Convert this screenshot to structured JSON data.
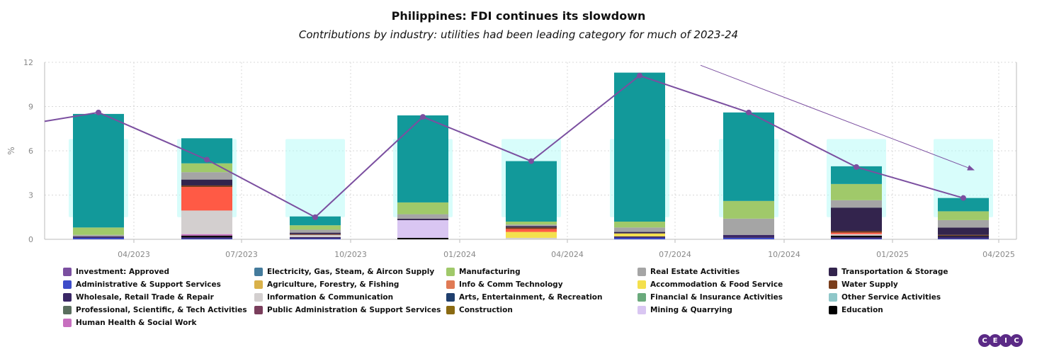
{
  "chart_data": {
    "type": "bar",
    "title": "Philippines: FDI continues its slowdown",
    "subtitle": "Contributions by industry: utilities had been leading category for much of 2023-24",
    "ylabel": "%",
    "ylim": [
      0,
      12
    ],
    "yticks": [
      "0",
      "3",
      "6",
      "9",
      "12"
    ],
    "xticks": [
      "04/2023",
      "07/2023",
      "10/2023",
      "01/2024",
      "04/2024",
      "07/2024",
      "10/2024",
      "01/2025",
      "04/2025"
    ],
    "grid": true,
    "stacked": true,
    "periods": [
      "Q1 2023",
      "Q2 2023",
      "Q3 2023",
      "Q4 2023",
      "Q1 2024",
      "Q2 2024",
      "Q3 2024",
      "Q4 2024",
      "Q1 2025"
    ],
    "total_line": {
      "name": "Investment: Approved",
      "values": [
        8.6,
        5.4,
        1.5,
        8.3,
        5.3,
        11.1,
        8.6,
        4.9,
        2.8
      ],
      "start_value": 8.0
    },
    "trend_arrow": {
      "from_value": 11.8,
      "to_value": 4.7
    },
    "series": [
      {
        "name": "Administrative & Support Services",
        "color": "#3d4cc9",
        "values": [
          0.1,
          0.05,
          0.05,
          0,
          0,
          0.1,
          0.1,
          0.05,
          0.05
        ]
      },
      {
        "name": "Wholesale, Retail Trade & Repair",
        "color": "#3a2766",
        "values": [
          0.1,
          0.1,
          0.1,
          0,
          0,
          0.1,
          0.2,
          0.1,
          0.15
        ]
      },
      {
        "name": "Education",
        "color": "#000000",
        "values": [
          0,
          0.1,
          0,
          0.1,
          0,
          0,
          0,
          0.1,
          0.05
        ]
      },
      {
        "name": "Human Health & Social Work",
        "color": "#c76fbf",
        "values": [
          0,
          0.1,
          0,
          0,
          0,
          0,
          0,
          0,
          0
        ]
      },
      {
        "name": "Information & Communication",
        "color": "#d3cfcf",
        "values": [
          0,
          1.6,
          0.15,
          0,
          0.1,
          0,
          0,
          0.1,
          0
        ]
      },
      {
        "name": "Mining & Quarrying",
        "color": "#d9c6f2",
        "values": [
          0,
          0,
          0,
          1.2,
          0,
          0,
          0,
          0,
          0
        ]
      },
      {
        "name": "Accommodation & Food Service",
        "color": "#f4e04d",
        "values": [
          0,
          0,
          0,
          0,
          0.4,
          0.2,
          0,
          0,
          0
        ]
      },
      {
        "name": "Info & Comm Technology",
        "color": "#ff5a45",
        "values": [
          0,
          1.6,
          0,
          0,
          0.2,
          0,
          0,
          0.1,
          0
        ]
      },
      {
        "name": "Water Supply",
        "color": "#7a3e1c",
        "values": [
          0,
          0.1,
          0.05,
          0,
          0.1,
          0,
          0,
          0.1,
          0.05
        ]
      },
      {
        "name": "Transportation & Storage",
        "color": "#33244d",
        "values": [
          0,
          0.4,
          0.1,
          0.1,
          0.1,
          0.1,
          0,
          1.6,
          0.5
        ]
      },
      {
        "name": "Real Estate Activities",
        "color": "#a5a5a5",
        "values": [
          0.1,
          0.5,
          0.2,
          0.3,
          0.1,
          0.3,
          1.1,
          0.5,
          0.5
        ]
      },
      {
        "name": "Manufacturing",
        "color": "#a0c96a",
        "values": [
          0.5,
          0.6,
          0.3,
          0.8,
          0.2,
          0.4,
          1.2,
          1.1,
          0.6
        ]
      },
      {
        "name": "Electricity, Gas, Steam, & Aircon Supply",
        "color": "#12999a",
        "values": [
          7.7,
          1.7,
          0.6,
          5.9,
          4.1,
          10.1,
          6.0,
          1.2,
          0.9
        ]
      }
    ],
    "legend": [
      {
        "name": "Investment: Approved",
        "color": "#7b4fa0"
      },
      {
        "name": "Electricity, Gas, Steam, & Aircon Supply",
        "color": "#447b9c"
      },
      {
        "name": "Manufacturing",
        "color": "#a0c96a"
      },
      {
        "name": "Real Estate Activities",
        "color": "#a5a5a5"
      },
      {
        "name": "Transportation & Storage",
        "color": "#33244d"
      },
      {
        "name": "Administrative & Support Services",
        "color": "#3d4cc9"
      },
      {
        "name": "Agriculture, Forestry, & Fishing",
        "color": "#d9b14a"
      },
      {
        "name": "Info & Comm Technology",
        "color": "#e07a55"
      },
      {
        "name": "Accommodation & Food Service",
        "color": "#f4e04d"
      },
      {
        "name": "Water Supply",
        "color": "#7a3e1c"
      },
      {
        "name": "Wholesale, Retail Trade & Repair",
        "color": "#3a2766"
      },
      {
        "name": "Information & Communication",
        "color": "#d3cfcf"
      },
      {
        "name": "Arts, Entertainment, & Recreation",
        "color": "#1f3f6e"
      },
      {
        "name": "Financial & Insurance Activities",
        "color": "#6aaa7c"
      },
      {
        "name": "Other Service Activities",
        "color": "#8fc7c9"
      },
      {
        "name": "Professional, Scientific, & Tech Activities",
        "color": "#5a6e5e"
      },
      {
        "name": "Public Administration & Support Services",
        "color": "#7a3e5c"
      },
      {
        "name": "Construction",
        "color": "#8a6a12"
      },
      {
        "name": "Mining & Quarrying",
        "color": "#d9c6f2"
      },
      {
        "name": "Education",
        "color": "#000000"
      },
      {
        "name": "Human Health & Social Work",
        "color": "#c76fbf"
      }
    ],
    "line_color": "#7b4fa0",
    "axis_color": "#bbbbbb",
    "grid_color": "#d8d8d8",
    "glow_color": "#b8fbf7"
  },
  "logo": {
    "letters": [
      "C",
      "E",
      "I",
      "C"
    ]
  }
}
